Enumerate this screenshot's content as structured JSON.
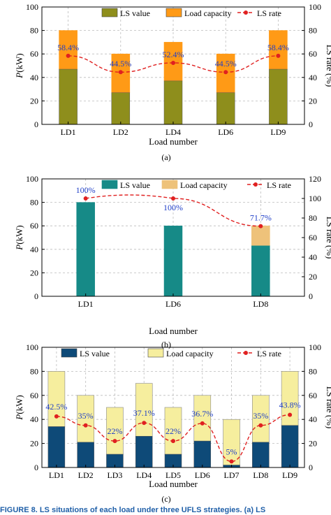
{
  "chart_data": [
    {
      "type": "bar",
      "panel_label": "(a)",
      "stacked": true,
      "xlabel": "Load number",
      "ylabel": "P(kW)",
      "ylabel_right": "LS rate (%)",
      "ylim": [
        0,
        100
      ],
      "yticks": [
        0,
        20,
        40,
        60,
        80,
        100
      ],
      "ylim_right": [
        0,
        100
      ],
      "yticks_right": [
        0,
        20,
        40,
        60,
        80,
        100
      ],
      "categories": [
        "LD1",
        "LD2",
        "LD4",
        "LD6",
        "LD9"
      ],
      "series": [
        {
          "name": "LS value",
          "values": [
            47,
            27,
            37,
            27,
            47
          ],
          "color": "#8e8e1c"
        },
        {
          "name": "Load capacity",
          "values": [
            33,
            33,
            33,
            33,
            33
          ],
          "color": "#ff9a16"
        }
      ],
      "line_series": {
        "name": "LS rate",
        "axis": "right",
        "values": [
          58.4,
          44.5,
          52.4,
          44.5,
          58.4
        ],
        "labels": [
          "58.4%",
          "44.5%",
          "52.4%",
          "44.5%",
          "58.4%"
        ],
        "color": "#e02020"
      },
      "legend": "top"
    },
    {
      "type": "bar",
      "panel_label": "(b)",
      "stacked": true,
      "xlabel": "Load number",
      "ylabel": "P(kW)",
      "ylabel_right": "LS rate (%)",
      "ylim": [
        0,
        100
      ],
      "yticks": [
        0,
        20,
        40,
        60,
        80,
        100
      ],
      "ylim_right": [
        0,
        120
      ],
      "yticks_right": [
        0,
        20,
        40,
        60,
        80,
        100,
        120
      ],
      "categories": [
        "LD1",
        "LD6",
        "LD8"
      ],
      "series": [
        {
          "name": "LS value",
          "values": [
            80,
            60,
            43
          ],
          "color": "#168a87"
        },
        {
          "name": "Load capacity",
          "values": [
            0,
            0,
            17
          ],
          "color": "#eec27a"
        }
      ],
      "line_series": {
        "name": "LS rate",
        "axis": "right",
        "values": [
          100,
          100,
          71.7
        ],
        "labels": [
          "100%",
          "100%",
          "71.7%"
        ],
        "color": "#e02020"
      },
      "legend": "top"
    },
    {
      "type": "bar",
      "panel_label": "(c)",
      "stacked": true,
      "xlabel": "Load number",
      "ylabel": "P(kW)",
      "ylabel_right": "LS rate (%)",
      "ylim": [
        0,
        100
      ],
      "yticks": [
        0,
        20,
        40,
        60,
        80,
        100
      ],
      "ylim_right": [
        0,
        100
      ],
      "yticks_right": [
        0,
        20,
        40,
        60,
        80,
        100
      ],
      "categories": [
        "LD1",
        "LD2",
        "LD3",
        "LD4",
        "LD5",
        "LD6",
        "LD7",
        "LD8",
        "LD9"
      ],
      "series": [
        {
          "name": "LS value",
          "values": [
            34,
            21,
            11,
            26,
            11,
            22,
            2,
            21,
            35
          ],
          "color": "#0e4a78"
        },
        {
          "name": "Load capacity",
          "values": [
            46,
            39,
            39,
            44,
            39,
            38,
            38,
            39,
            45
          ],
          "color": "#f6ee9e"
        }
      ],
      "line_series": {
        "name": "LS rate",
        "axis": "right",
        "values": [
          42.5,
          35,
          22,
          37.1,
          22,
          36.7,
          5,
          35,
          43.8
        ],
        "labels": [
          "42.5%",
          "35%",
          "22%",
          "37.1%",
          "22%",
          "36.7%",
          "5%",
          "35%",
          "43.8%"
        ],
        "color": "#e02020"
      },
      "legend": "top"
    }
  ],
  "caption_fragment": "FIGURE 8.  LS situations of each load under three UFLS strategies. (a) LS"
}
